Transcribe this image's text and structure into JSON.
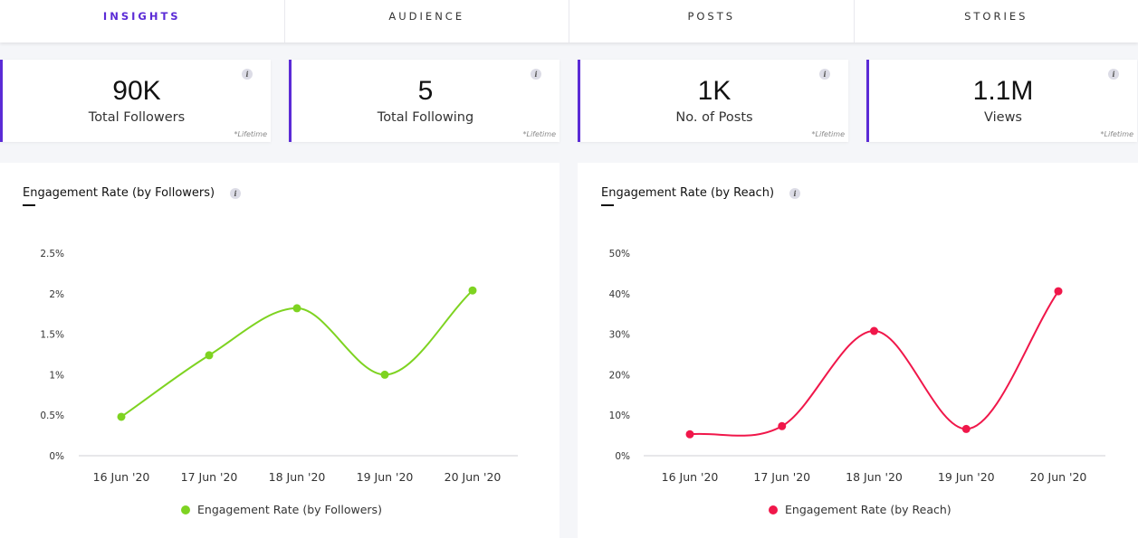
{
  "tabs": [
    {
      "label": "INSIGHTS",
      "active": true
    },
    {
      "label": "AUDIENCE",
      "active": false
    },
    {
      "label": "POSTS",
      "active": false
    },
    {
      "label": "STORIES",
      "active": false
    }
  ],
  "stats": [
    {
      "value": "90K",
      "label": "Total Followers",
      "note": "*Lifetime",
      "info": "i"
    },
    {
      "value": "5",
      "label": "Total Following",
      "note": "*Lifetime",
      "info": "i"
    },
    {
      "value": "1K",
      "label": "No. of Posts",
      "note": "*Lifetime",
      "info": "i"
    },
    {
      "value": "1.1M",
      "label": "Views",
      "note": "*Lifetime",
      "info": "i"
    }
  ],
  "colors": {
    "accent": "#5b2bd6",
    "followers_line": "#7ed321",
    "reach_line": "#f0174a"
  },
  "chart_data": [
    {
      "type": "line",
      "title": "Engagement Rate (by Followers)",
      "info": "i",
      "categories": [
        "16 Jun '20",
        "17 Jun '20",
        "18 Jun '20",
        "19 Jun '20",
        "20 Jun '20"
      ],
      "series": [
        {
          "name": "Engagement Rate (by Followers)",
          "values": [
            0.48,
            1.24,
            1.82,
            1.0,
            2.04
          ]
        }
      ],
      "yticks": [
        "0%",
        "0.5%",
        "1%",
        "1.5%",
        "2%",
        "2.5%"
      ],
      "ylim": [
        0,
        2.5
      ],
      "xlabel": "",
      "ylabel": ""
    },
    {
      "type": "line",
      "title": "Engagement Rate (by Reach)",
      "info": "i",
      "categories": [
        "16 Jun '20",
        "17 Jun '20",
        "18 Jun '20",
        "19 Jun '20",
        "20 Jun '20"
      ],
      "series": [
        {
          "name": "Engagement Rate (by Reach)",
          "values": [
            5.3,
            7.3,
            30.8,
            6.6,
            40.6
          ]
        }
      ],
      "yticks": [
        "0%",
        "10%",
        "20%",
        "30%",
        "40%",
        "50%"
      ],
      "ylim": [
        0,
        50
      ],
      "xlabel": "",
      "ylabel": ""
    }
  ]
}
